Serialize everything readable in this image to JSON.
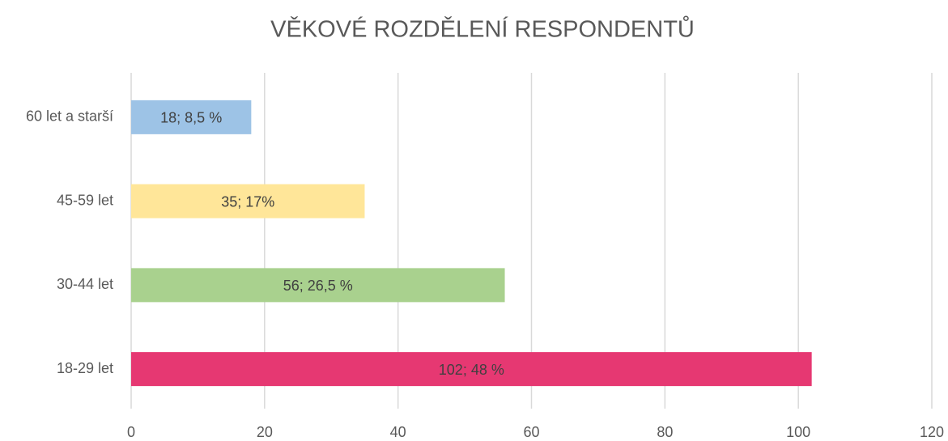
{
  "chart_data": {
    "type": "hbar",
    "title": "VĚKOVÉ ROZDĚLENÍ RESPONDENTŮ",
    "categories": [
      "60 let a starší",
      "45-59 let",
      "30-44 let",
      "18-29 let"
    ],
    "values": [
      18,
      35,
      56,
      102
    ],
    "value_labels": [
      "18; 8,5 %",
      "35; 17%",
      "56; 26,5 %",
      "102; 48 %"
    ],
    "colors": [
      "#9dc3e6",
      "#ffe699",
      "#a9d18e",
      "#e63872"
    ],
    "xlim": [
      0,
      120
    ],
    "xticks": [
      0,
      20,
      40,
      60,
      80,
      100,
      120
    ],
    "grid": true
  }
}
